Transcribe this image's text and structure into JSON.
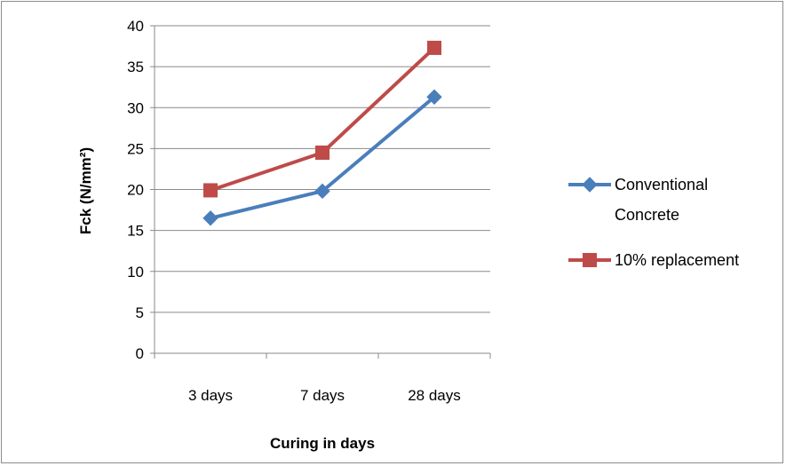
{
  "chart_data": {
    "type": "line",
    "title": "",
    "xlabel": "Curing in days",
    "ylabel": "Fck (N/mm²)",
    "categories": [
      "3 days",
      "7 days",
      "28 days"
    ],
    "ylim": [
      0,
      40
    ],
    "yticks": [
      0,
      5,
      10,
      15,
      20,
      25,
      30,
      35,
      40
    ],
    "grid": true,
    "legend_position": "right",
    "series": [
      {
        "name_lines": [
          "Conventional",
          "Concrete"
        ],
        "values": [
          16.5,
          19.8,
          31.3
        ],
        "color": "#4a7ebb",
        "marker": "diamond"
      },
      {
        "name_lines": [
          "10% replacement"
        ],
        "values": [
          19.9,
          24.5,
          37.3
        ],
        "color": "#be4b48",
        "marker": "square"
      }
    ]
  }
}
